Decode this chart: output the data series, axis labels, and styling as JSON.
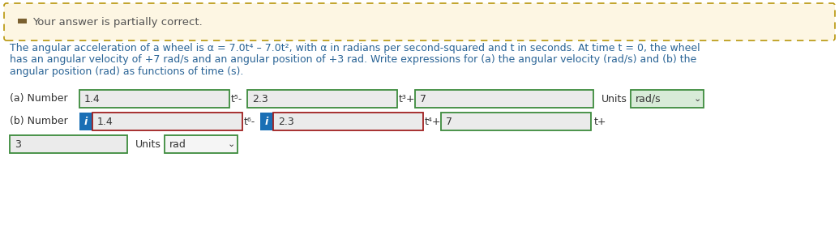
{
  "banner_text": "Your answer is partially correct.",
  "banner_bg": "#fdf6e3",
  "banner_border": "#b8960c",
  "banner_icon_color": "#7a6030",
  "body_text_color": "#2a6496",
  "body_line1": "The angular acceleration of a wheel is α = 7.0t⁴ – 7.0t², with α in radians per second-squared and t in seconds. At time t = 0, the wheel",
  "body_line2": "has an angular velocity of +7 rad/s and an angular position of +3 rad. Write expressions for (a) the angular velocity (rad/s) and (b) the",
  "body_line3": "angular position (rad) as functions of time (s).",
  "row_a_label": "(a) Number",
  "row_a_box1": "1.4",
  "row_a_exp1": "t⁵-",
  "row_a_box2": "2.3",
  "row_a_exp2": "t³+",
  "row_a_box3": "7",
  "row_a_units_label": "Units",
  "row_a_units": "rad/s",
  "row_b_label": "(b) Number",
  "row_b_i_color": "#1a6fb5",
  "row_b_box1": "1.4",
  "row_b_exp1": "t⁶-",
  "row_b_box2": "2.3",
  "row_b_exp2": "t⁴+",
  "row_b_box3": "7",
  "row_b_exp3": "t+",
  "row_b_box4": "3",
  "row_b_units_label": "Units",
  "row_b_units": "rad",
  "bg_color": "#ffffff",
  "input_bg": "#ebebeb",
  "input_border_green": "#3d8b3d",
  "input_border_red": "#a02020",
  "text_color": "#333333",
  "units_bg": "#d8ebd8",
  "chevron": "⌄"
}
